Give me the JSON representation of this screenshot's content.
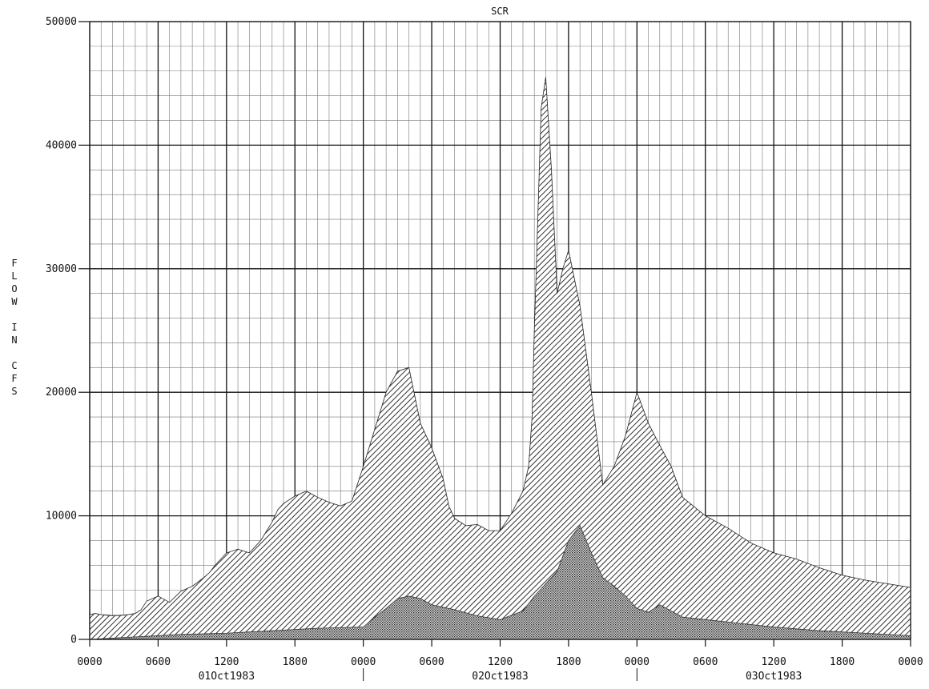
{
  "chart_data": {
    "type": "area",
    "title": "SCR",
    "xlabel": "",
    "ylabel": "FLOW IN CFS",
    "ylim": [
      0,
      50000
    ],
    "yticks": [
      0,
      10000,
      20000,
      30000,
      40000,
      50000
    ],
    "ytick_labels": [
      "0",
      "10000",
      "20000",
      "30000",
      "40000",
      "50000"
    ],
    "xlim_hours": [
      0,
      72
    ],
    "xtick_labels": [
      "0000",
      "0600",
      "1200",
      "1800",
      "0000",
      "0600",
      "1200",
      "1800",
      "0000",
      "0600",
      "1200",
      "1800",
      "0000"
    ],
    "date_labels": [
      "01Oct1983",
      "02Oct1983",
      "03Oct1983"
    ],
    "grid": true,
    "x_unit": "hours from 01Oct1983 0000",
    "series": [
      {
        "fill": "diagonal-hatch",
        "x": [
          0,
          0.5,
          1,
          2,
          3,
          4,
          4.5,
          5,
          6,
          7,
          8,
          9,
          10,
          10.5,
          11,
          12,
          13,
          14,
          15,
          16,
          16.5,
          17,
          18,
          19,
          20,
          21,
          22,
          23,
          24,
          25,
          26,
          27,
          28,
          29,
          30,
          31,
          31.5,
          32,
          33,
          34,
          35,
          36,
          37,
          38,
          38.5,
          38.8,
          39,
          39.3,
          39.6,
          40,
          40.5,
          41,
          41.5,
          42,
          43,
          44,
          45,
          46,
          47,
          48,
          49,
          50,
          51,
          52,
          54,
          56,
          58,
          60,
          62,
          64,
          66,
          68,
          70,
          72
        ],
        "y": [
          2000,
          2100,
          2000,
          1900,
          1950,
          2100,
          2400,
          3100,
          3500,
          3000,
          3900,
          4300,
          5000,
          5400,
          6000,
          7000,
          7300,
          7000,
          8000,
          9500,
          10500,
          11000,
          11600,
          12000,
          11500,
          11100,
          10800,
          11200,
          14000,
          17000,
          20000,
          21700,
          22000,
          17500,
          15500,
          13000,
          10800,
          9800,
          9200,
          9300,
          8800,
          8800,
          10200,
          12000,
          14000,
          18000,
          25000,
          34000,
          43000,
          45500,
          38000,
          28000,
          30000,
          31500,
          27000,
          20000,
          12500,
          14000,
          16500,
          20000,
          17500,
          15700,
          14000,
          11500,
          10000,
          9000,
          7800,
          7000,
          6500,
          5800,
          5200,
          4800,
          4500,
          4200
        ]
      },
      {
        "fill": "crosshatch",
        "x": [
          0,
          4,
          8,
          12,
          16,
          20,
          24,
          25,
          26,
          27,
          28,
          29,
          30,
          32,
          34,
          36,
          38,
          39,
          40,
          41,
          42,
          43,
          44,
          45,
          46,
          47,
          48,
          49,
          50,
          52,
          56,
          60,
          64,
          68,
          72
        ],
        "y": [
          0,
          200,
          400,
          500,
          700,
          900,
          1000,
          1800,
          2500,
          3300,
          3500,
          3300,
          2800,
          2400,
          1900,
          1600,
          2300,
          3500,
          4500,
          5500,
          8000,
          9200,
          7000,
          5000,
          4300,
          3500,
          2500,
          2200,
          2800,
          1800,
          1400,
          1000,
          700,
          500,
          300
        ]
      }
    ]
  }
}
